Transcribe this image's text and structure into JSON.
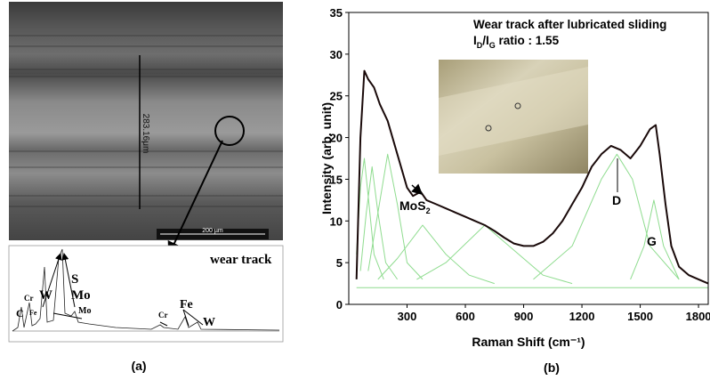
{
  "panel_a": {
    "sem_width_label": "283.16μm",
    "scale_bar_label": "200 µm",
    "eds_title": "wear track",
    "eds_peaks": [
      "C",
      "Cr",
      "Fe",
      "W",
      "S",
      "Mo",
      "Mo",
      "Cr",
      "Fe",
      "W"
    ],
    "caption": "(a)"
  },
  "chart_data": {
    "type": "line",
    "xlabel": "Raman Shift (cm⁻¹)",
    "ylabel": "Intensity (arb. unit)",
    "caption": "(b)",
    "xlim": [
      0,
      1850
    ],
    "ylim": [
      0,
      35
    ],
    "xticks": [
      300,
      600,
      900,
      1200,
      1500,
      1800
    ],
    "yticks": [
      0,
      5,
      10,
      15,
      20,
      25,
      30,
      35
    ],
    "annotations": {
      "box_title": "Wear track after lubricated sliding",
      "ratio": [
        "I",
        "D",
        "/I",
        "G",
        " ratio : 1.55"
      ],
      "mos2": [
        "MoS",
        "2"
      ],
      "d_label": "D",
      "g_label": "G"
    },
    "series": [
      {
        "color": "#8fdc8f",
        "x": [
          40,
          1850
        ],
        "values": [
          2,
          2
        ]
      },
      {
        "color": "#8fdc8f",
        "x": [
          40,
          60,
          80,
          100,
          130,
          180
        ],
        "values": [
          6,
          14,
          17.5,
          13,
          6,
          3
        ]
      },
      {
        "color": "#8fdc8f",
        "x": [
          60,
          90,
          120,
          150,
          190,
          250
        ],
        "values": [
          4,
          11,
          16.5,
          11,
          5,
          3
        ]
      },
      {
        "color": "#8fdc8f",
        "x": [
          100,
          150,
          200,
          250,
          300,
          380
        ],
        "values": [
          4,
          11,
          18,
          12,
          5,
          3
        ]
      },
      {
        "color": "#8fdc8f",
        "x": [
          150,
          250,
          380,
          500,
          620,
          750
        ],
        "values": [
          3,
          5.5,
          9.5,
          6,
          3.5,
          2.5
        ]
      },
      {
        "color": "#8fdc8f",
        "x": [
          350,
          500,
          700,
          850,
          1000,
          1150
        ],
        "values": [
          3,
          5,
          9.5,
          6.5,
          3.5,
          2.5
        ]
      },
      {
        "color": "#8fdc8f",
        "x": [
          950,
          1150,
          1300,
          1380,
          1460,
          1550,
          1700
        ],
        "values": [
          3,
          7,
          15,
          18,
          15,
          7,
          3
        ]
      },
      {
        "color": "#8fdc8f",
        "x": [
          1450,
          1520,
          1570,
          1620,
          1700
        ],
        "values": [
          3,
          7,
          12.5,
          7,
          3
        ]
      },
      {
        "color": "#1a0a0a",
        "x": [
          40,
          60,
          80,
          100,
          130,
          160,
          200,
          250,
          300,
          330,
          370,
          400,
          450,
          500,
          550,
          600,
          650,
          700,
          750,
          800,
          850,
          900,
          950,
          1000,
          1050,
          1100,
          1150,
          1200,
          1250,
          1300,
          1350,
          1400,
          1450,
          1500,
          1550,
          1580,
          1600,
          1630,
          1660,
          1700,
          1750,
          1800,
          1850
        ],
        "values": [
          3,
          20,
          28,
          27,
          26,
          24,
          22,
          18,
          14,
          13,
          13.5,
          12.5,
          12,
          11.5,
          11,
          10.5,
          10,
          9.5,
          8.8,
          8,
          7.3,
          7,
          7,
          7.5,
          8.5,
          10,
          12,
          14,
          16.5,
          18,
          19,
          18.5,
          17.5,
          19,
          21,
          21.5,
          18,
          12,
          7,
          4.5,
          3.5,
          3,
          2.5
        ]
      }
    ]
  }
}
